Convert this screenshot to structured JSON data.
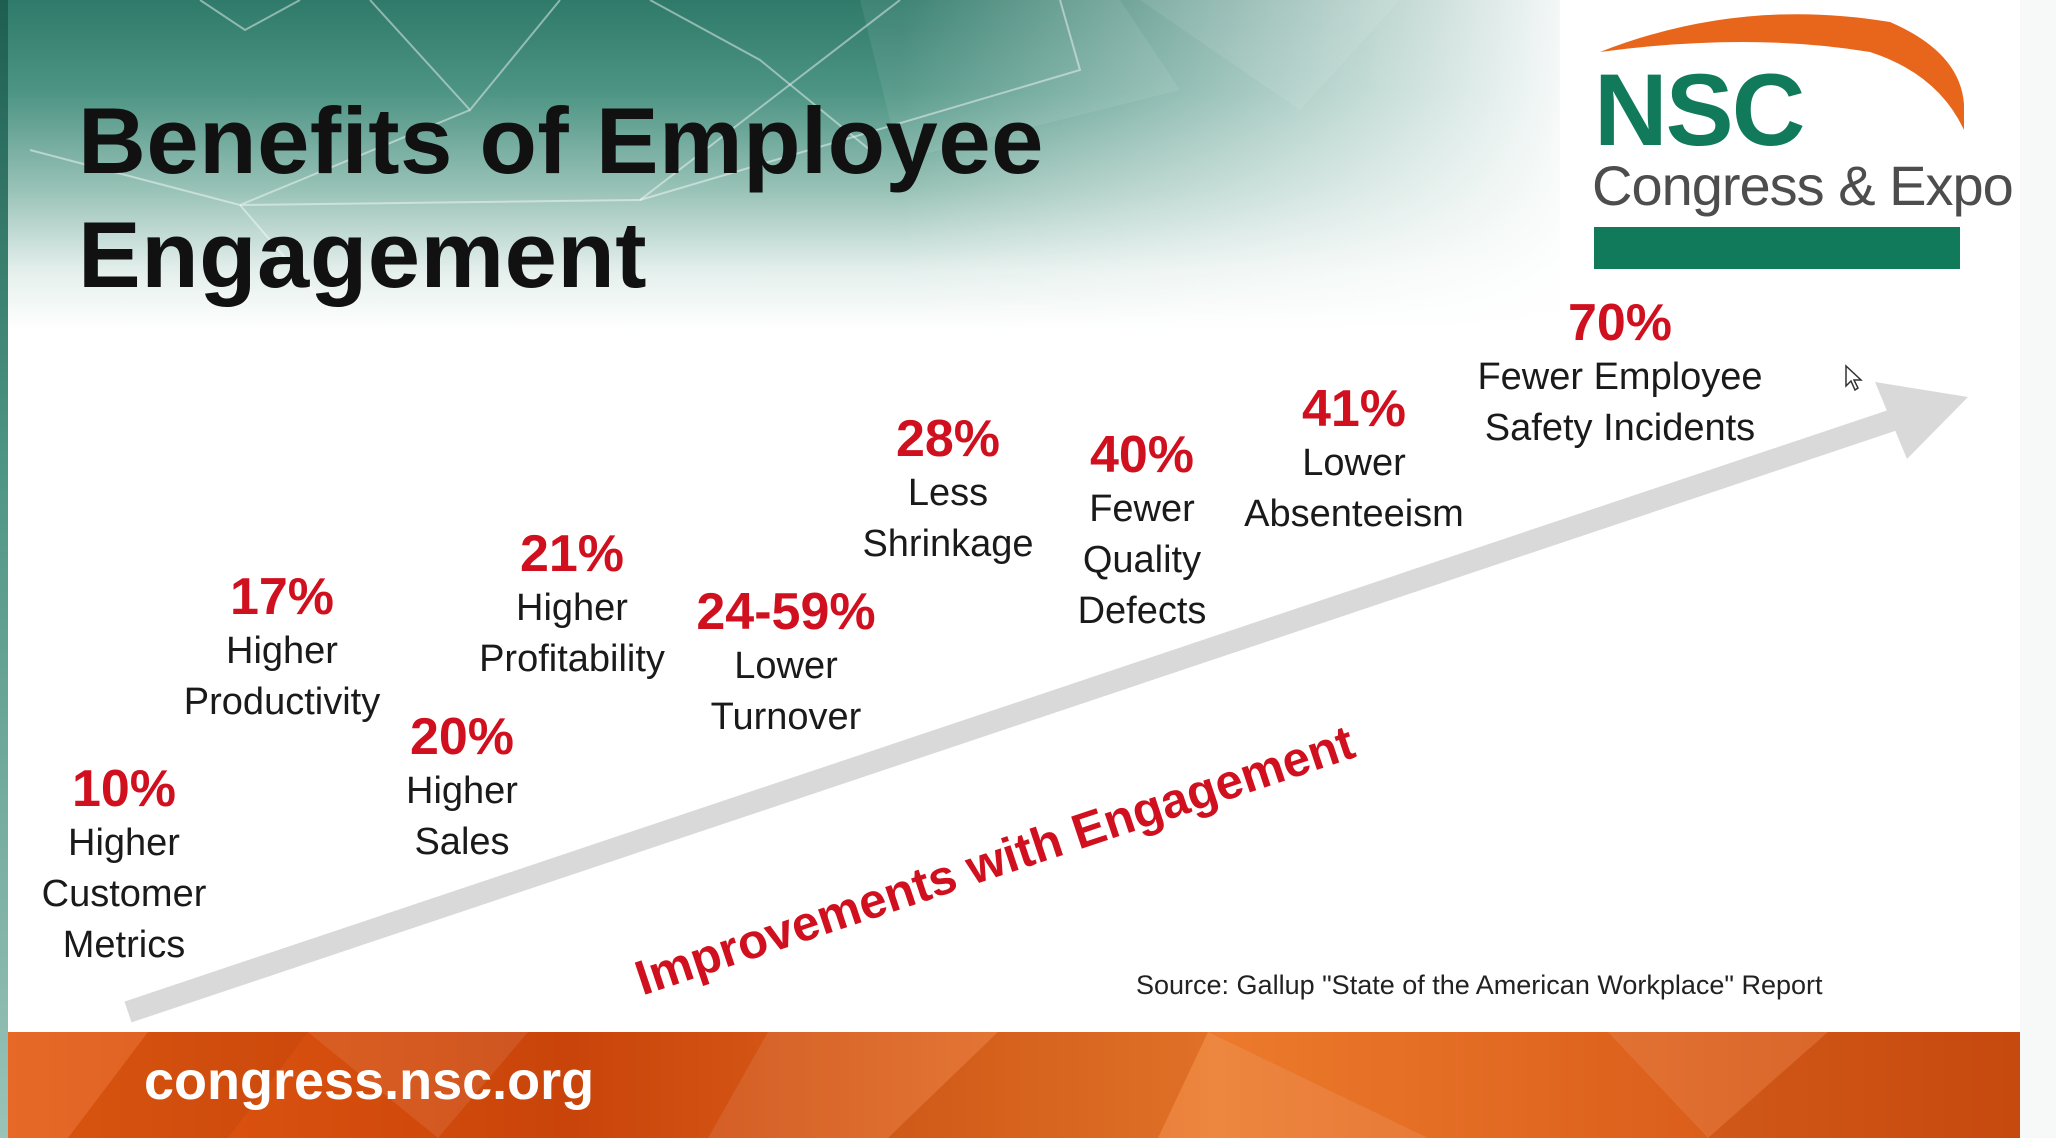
{
  "slide": {
    "title_lines": [
      "Benefits of Employee",
      "Engagement"
    ],
    "logo": {
      "name": "NSC",
      "subtitle": "Congress & Expo"
    },
    "arrow_label": "Improvements with Engagement",
    "source": "Source: Gallup \"State of the American Workplace\" Report",
    "footer_url": "congress.nsc.org",
    "colors": {
      "accent_red": "#d0101f",
      "brand_green": "#117a5b",
      "brand_orange": "#e8661c",
      "arrow_gray": "#d9d9d9"
    }
  },
  "stats": [
    {
      "value": "10%",
      "label_lines": [
        "Higher",
        "Customer",
        "Metrics"
      ]
    },
    {
      "value": "17%",
      "label_lines": [
        "Higher",
        "Productivity"
      ]
    },
    {
      "value": "20%",
      "label_lines": [
        "Higher",
        "Sales"
      ]
    },
    {
      "value": "21%",
      "label_lines": [
        "Higher",
        "Profitability"
      ]
    },
    {
      "value": "24-59%",
      "label_lines": [
        "Lower",
        "Turnover"
      ]
    },
    {
      "value": "28%",
      "label_lines": [
        "Less",
        "Shrinkage"
      ]
    },
    {
      "value": "40%",
      "label_lines": [
        "Fewer",
        "Quality",
        "Defects"
      ]
    },
    {
      "value": "41%",
      "label_lines": [
        "Lower",
        "Absenteeism"
      ]
    },
    {
      "value": "70%",
      "label_lines": [
        "Fewer Employee",
        "Safety Incidents"
      ]
    }
  ]
}
